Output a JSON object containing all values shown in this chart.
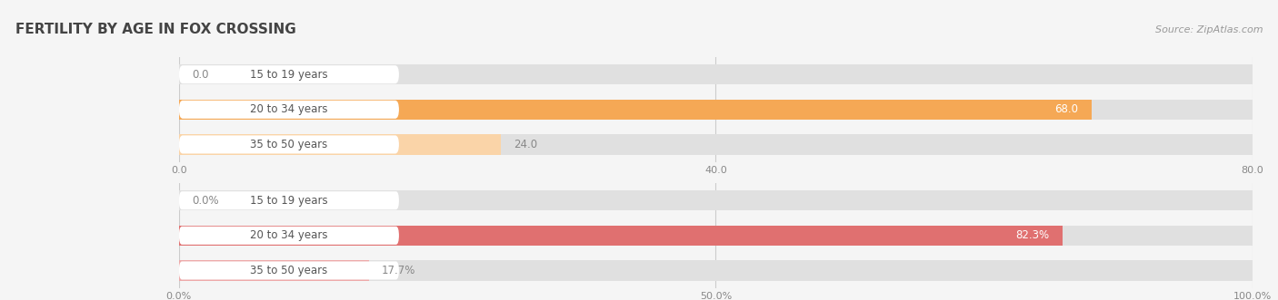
{
  "title": "FERTILITY BY AGE IN FOX CROSSING",
  "source": "Source: ZipAtlas.com",
  "top_chart": {
    "categories": [
      "15 to 19 years",
      "20 to 34 years",
      "35 to 50 years"
    ],
    "values": [
      0.0,
      68.0,
      24.0
    ],
    "xlim": [
      0,
      80.0
    ],
    "xticks": [
      0.0,
      40.0,
      80.0
    ],
    "xtick_labels": [
      "0.0",
      "40.0",
      "80.0"
    ],
    "bar_color_main": "#F5A855",
    "bar_color_light": "#FAD4A8",
    "value_suffix": ""
  },
  "bottom_chart": {
    "categories": [
      "15 to 19 years",
      "20 to 34 years",
      "35 to 50 years"
    ],
    "values": [
      0.0,
      82.3,
      17.7
    ],
    "xlim": [
      0,
      100.0
    ],
    "xticks": [
      0.0,
      50.0,
      100.0
    ],
    "xtick_labels": [
      "0.0%",
      "50.0%",
      "100.0%"
    ],
    "bar_color_main": "#E07070",
    "bar_color_light": "#EDAAAA",
    "value_suffix": "%"
  },
  "background_color": "#f5f5f5",
  "bar_bg_color": "#e0e0e0",
  "title_fontsize": 11,
  "label_fontsize": 8.5,
  "value_fontsize": 8.5,
  "tick_fontsize": 8,
  "source_fontsize": 8
}
